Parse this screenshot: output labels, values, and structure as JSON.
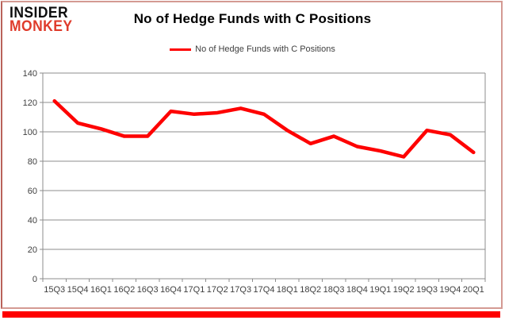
{
  "branding": {
    "logo_line1": "INSIDER",
    "logo_line2": "MONKEY"
  },
  "header": {
    "title": "No of Hedge Funds with C Positions"
  },
  "legend": {
    "label": "No of Hedge Funds with C Positions"
  },
  "colors": {
    "line": "#fe0000",
    "logo_black": "#0d0d0d",
    "logo_red": "#df3b2b",
    "grid": "#8c8c8c",
    "axis_text": "#3f3f3f",
    "frame_border": "#d49a93",
    "bottom_bar": "#fe0000"
  },
  "chart_data": {
    "type": "line",
    "title": "No of Hedge Funds with C Positions",
    "categories": [
      "15Q3",
      "15Q4",
      "16Q1",
      "16Q2",
      "16Q3",
      "16Q4",
      "17Q1",
      "17Q2",
      "17Q3",
      "17Q4",
      "18Q1",
      "18Q2",
      "18Q3",
      "18Q4",
      "19Q1",
      "19Q2",
      "19Q3",
      "19Q4",
      "20Q1"
    ],
    "series": [
      {
        "name": "No of Hedge Funds with C Positions",
        "values": [
          121,
          106,
          102,
          97,
          97,
          114,
          112,
          113,
          116,
          112,
          101,
          92,
          97,
          90,
          87,
          83,
          101,
          98,
          86
        ]
      }
    ],
    "xlabel": "",
    "ylabel": "",
    "ylim": [
      0,
      140
    ],
    "ytick_interval": 20,
    "yticks": [
      0,
      20,
      40,
      60,
      80,
      100,
      120,
      140
    ],
    "grid": true,
    "legend_position": "top-center"
  }
}
